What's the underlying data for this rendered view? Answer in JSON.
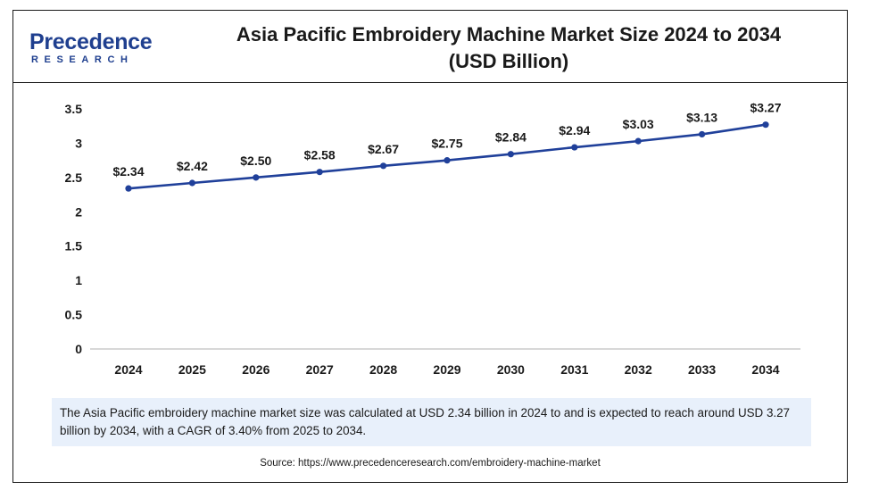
{
  "brand": {
    "name": "Precedence",
    "sub": "RESEARCH",
    "color": "#1f3f8f"
  },
  "title_line1": "Asia Pacific Embroidery Machine Market Size 2024 to 2034",
  "title_line2": "(USD Billion)",
  "chart_data": {
    "type": "line",
    "title": "Asia Pacific Embroidery Machine Market Size 2024 to 2034 (USD Billion)",
    "categories": [
      "2024",
      "2025",
      "2026",
      "2027",
      "2028",
      "2029",
      "2030",
      "2031",
      "2032",
      "2033",
      "2034"
    ],
    "series": [
      {
        "values": [
          2.34,
          2.42,
          2.5,
          2.58,
          2.67,
          2.75,
          2.84,
          2.94,
          3.03,
          3.13,
          3.27
        ],
        "labels": [
          "$2.34",
          "$2.42",
          "$2.50",
          "$2.58",
          "$2.67",
          "$2.75",
          "$2.84",
          "$2.94",
          "$3.03",
          "$3.13",
          "$3.27"
        ],
        "color": "#20409a"
      }
    ],
    "yticks": [
      "0",
      "0.5",
      "1",
      "1.5",
      "2",
      "2.5",
      "3",
      "3.5"
    ],
    "ylim": [
      0,
      3.5
    ],
    "grid": false,
    "legend": "none"
  },
  "note": "The Asia Pacific embroidery machine market size was calculated at USD 2.34 billion in 2024 to and is expected to reach around USD 3.27 billion by 2034, with a CAGR of 3.40% from 2025 to 2034.",
  "source": "Source: https://www.precedenceresearch.com/embroidery-machine-market"
}
